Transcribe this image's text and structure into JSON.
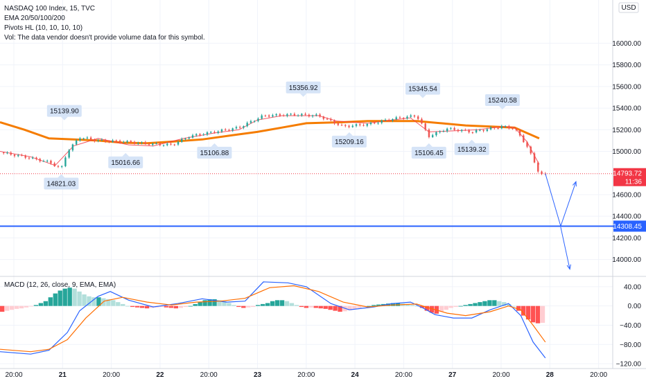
{
  "header": {
    "title": "NASDAQ 100 Index, 15, TVC",
    "ema": "EMA 20/50/100/200",
    "pivots": "Pivots HL (10, 10, 10, 10)",
    "vol": "Vol: The data vendor doesn't provide volume data for this symbol."
  },
  "currency": "USD",
  "macd_label": "MACD (12, 26, close, 9, EMA, EMA)",
  "colors": {
    "up": "#26a69a",
    "down": "#ef5350",
    "ema_orange": "#f57c00",
    "ema_red": "#f23645",
    "support": "#2962ff",
    "macd_line": "#2962ff",
    "signal_line": "#ff6d00",
    "label_bg": "#d6e4f7",
    "price_tag": "#f23645"
  },
  "chart_data": [
    {
      "type": "candlestick",
      "ylim": [
        13850,
        16400
      ],
      "y_ticks": [
        {
          "v": 16000,
          "label": "16000.00"
        },
        {
          "v": 15800,
          "label": "15800.00"
        },
        {
          "v": 15600,
          "label": "15600.00"
        },
        {
          "v": 15400,
          "label": "15400.00"
        },
        {
          "v": 15200,
          "label": "15200.00"
        },
        {
          "v": 15000,
          "label": "15000.00"
        },
        {
          "v": 14600,
          "label": "14600.00"
        },
        {
          "v": 14400,
          "label": "14400.00"
        },
        {
          "v": 14200,
          "label": "14200.00"
        },
        {
          "v": 14000,
          "label": "14000.00"
        }
      ],
      "x_ticks": [
        "20:00",
        "21",
        "20:00",
        "22",
        "20:00",
        "23",
        "20:00",
        "24",
        "20:00",
        "27",
        "20:00",
        "28",
        "20:00"
      ],
      "price_path": [
        [
          0,
          14990
        ],
        [
          0.04,
          14950
        ],
        [
          0.08,
          14900
        ],
        [
          0.1,
          14840
        ],
        [
          0.11,
          15000
        ],
        [
          0.13,
          15130
        ],
        [
          0.16,
          15100
        ],
        [
          0.2,
          15090
        ],
        [
          0.24,
          15070
        ],
        [
          0.28,
          15060
        ],
        [
          0.31,
          15140
        ],
        [
          0.35,
          15180
        ],
        [
          0.39,
          15220
        ],
        [
          0.43,
          15330
        ],
        [
          0.48,
          15340
        ],
        [
          0.52,
          15330
        ],
        [
          0.56,
          15230
        ],
        [
          0.6,
          15250
        ],
        [
          0.64,
          15300
        ],
        [
          0.68,
          15330
        ],
        [
          0.7,
          15140
        ],
        [
          0.73,
          15210
        ],
        [
          0.77,
          15180
        ],
        [
          0.82,
          15230
        ],
        [
          0.84,
          15210
        ],
        [
          0.86,
          15050
        ],
        [
          0.88,
          14800
        ],
        [
          0.89,
          14780
        ]
      ],
      "ema_fast": [
        [
          0,
          15000
        ],
        [
          0.05,
          14950
        ],
        [
          0.09,
          14870
        ],
        [
          0.12,
          15050
        ],
        [
          0.16,
          15120
        ],
        [
          0.21,
          15060
        ],
        [
          0.25,
          15050
        ],
        [
          0.3,
          15120
        ],
        [
          0.35,
          15170
        ],
        [
          0.39,
          15200
        ],
        [
          0.42,
          15290
        ],
        [
          0.46,
          15330
        ],
        [
          0.52,
          15330
        ],
        [
          0.55,
          15280
        ],
        [
          0.6,
          15260
        ],
        [
          0.64,
          15290
        ],
        [
          0.67,
          15310
        ],
        [
          0.7,
          15180
        ],
        [
          0.74,
          15190
        ],
        [
          0.78,
          15200
        ],
        [
          0.82,
          15230
        ],
        [
          0.84,
          15220
        ],
        [
          0.86,
          15090
        ],
        [
          0.88,
          14880
        ]
      ],
      "ema_slow": [
        [
          0,
          15270
        ],
        [
          0.04,
          15200
        ],
        [
          0.08,
          15120
        ],
        [
          0.12,
          15110
        ],
        [
          0.16,
          15100
        ],
        [
          0.2,
          15080
        ],
        [
          0.24,
          15075
        ],
        [
          0.28,
          15090
        ],
        [
          0.33,
          15110
        ],
        [
          0.38,
          15150
        ],
        [
          0.42,
          15180
        ],
        [
          0.46,
          15220
        ],
        [
          0.5,
          15260
        ],
        [
          0.56,
          15270
        ],
        [
          0.6,
          15280
        ],
        [
          0.64,
          15280
        ],
        [
          0.68,
          15280
        ],
        [
          0.72,
          15260
        ],
        [
          0.76,
          15240
        ],
        [
          0.8,
          15230
        ],
        [
          0.84,
          15220
        ],
        [
          0.88,
          15120
        ]
      ],
      "pivots": [
        {
          "x": 0.1,
          "price": 14821.03,
          "label": "14821.03",
          "pos": "below"
        },
        {
          "x": 0.105,
          "price": 15139.9,
          "label": "15139.90",
          "pos": "above"
        },
        {
          "x": 0.205,
          "price": 15016.66,
          "label": "15016.66",
          "pos": "below"
        },
        {
          "x": 0.35,
          "price": 15106.88,
          "label": "15106.88",
          "pos": "below"
        },
        {
          "x": 0.495,
          "price": 15356.92,
          "label": "15356.92",
          "pos": "above"
        },
        {
          "x": 0.57,
          "price": 15209.16,
          "label": "15209.16",
          "pos": "below"
        },
        {
          "x": 0.69,
          "price": 15345.54,
          "label": "15345.54",
          "pos": "above"
        },
        {
          "x": 0.7,
          "price": 15106.45,
          "label": "15106.45",
          "pos": "below"
        },
        {
          "x": 0.77,
          "price": 15139.32,
          "label": "15139.32",
          "pos": "below"
        },
        {
          "x": 0.82,
          "price": 15240.58,
          "label": "15240.58",
          "pos": "above"
        }
      ],
      "last_price": {
        "value": 14793.72,
        "label": "14793.72",
        "countdown": "11:36"
      },
      "support": {
        "value": 14308.45,
        "label": "14308.45"
      },
      "projection": [
        [
          0.89,
          14793.72
        ],
        [
          0.915,
          14308.45
        ],
        [
          0.94,
          14720
        ]
      ],
      "projection2": [
        [
          0.915,
          14300
        ],
        [
          0.93,
          13910
        ]
      ]
    },
    {
      "type": "macd",
      "ylim": [
        -130,
        60
      ],
      "y_ticks": [
        {
          "v": 40,
          "label": "40.00"
        },
        {
          "v": 0,
          "label": "0.00"
        },
        {
          "v": -40,
          "label": "−40.00"
        },
        {
          "v": -80,
          "label": "−80.00"
        },
        {
          "v": -120,
          "label": "−120.00"
        }
      ],
      "hist": [
        -12,
        -10,
        -8,
        -6,
        -5,
        -3,
        -1,
        2,
        6,
        10,
        18,
        26,
        32,
        36,
        38,
        36,
        30,
        24,
        20,
        18,
        18,
        16,
        14,
        12,
        8,
        4,
        0,
        -2,
        -3,
        -4,
        -5,
        -4,
        -3,
        -2,
        -3,
        -4,
        -5,
        -4,
        -2,
        0,
        4,
        8,
        12,
        14,
        14,
        12,
        10,
        6,
        2,
        -2,
        -4,
        -3,
        -2,
        2,
        4,
        6,
        10,
        12,
        12,
        10,
        6,
        2,
        -2,
        -4,
        -3,
        -4,
        -5,
        -6,
        -8,
        -10,
        -12,
        -11,
        -9,
        -6,
        -4,
        -2,
        0,
        2,
        3,
        4,
        5,
        6,
        6,
        5,
        4,
        2,
        0,
        -4,
        -10,
        -14,
        -16,
        -12,
        -8,
        -4,
        -2,
        0,
        2,
        4,
        6,
        8,
        10,
        12,
        12,
        10,
        8,
        4,
        0,
        -10,
        -20,
        -28,
        -34,
        -36,
        -35
      ],
      "macd_line": [
        [
          0,
          -95
        ],
        [
          0.05,
          -100
        ],
        [
          0.08,
          -92
        ],
        [
          0.11,
          -55
        ],
        [
          0.13,
          -10
        ],
        [
          0.16,
          20
        ],
        [
          0.18,
          30
        ],
        [
          0.21,
          12
        ],
        [
          0.25,
          -2
        ],
        [
          0.29,
          5
        ],
        [
          0.33,
          15
        ],
        [
          0.37,
          8
        ],
        [
          0.4,
          10
        ],
        [
          0.43,
          50
        ],
        [
          0.47,
          48
        ],
        [
          0.5,
          40
        ],
        [
          0.54,
          5
        ],
        [
          0.57,
          -8
        ],
        [
          0.61,
          -2
        ],
        [
          0.64,
          5
        ],
        [
          0.67,
          8
        ],
        [
          0.69,
          -4
        ],
        [
          0.71,
          -18
        ],
        [
          0.74,
          -25
        ],
        [
          0.77,
          -25
        ],
        [
          0.8,
          -8
        ],
        [
          0.83,
          5
        ],
        [
          0.85,
          -20
        ],
        [
          0.87,
          -75
        ],
        [
          0.89,
          -108
        ]
      ],
      "signal_line": [
        [
          0,
          -90
        ],
        [
          0.05,
          -95
        ],
        [
          0.08,
          -90
        ],
        [
          0.11,
          -70
        ],
        [
          0.14,
          -25
        ],
        [
          0.17,
          10
        ],
        [
          0.2,
          18
        ],
        [
          0.24,
          8
        ],
        [
          0.28,
          2
        ],
        [
          0.32,
          8
        ],
        [
          0.36,
          10
        ],
        [
          0.4,
          16
        ],
        [
          0.44,
          38
        ],
        [
          0.48,
          42
        ],
        [
          0.52,
          30
        ],
        [
          0.56,
          8
        ],
        [
          0.6,
          -2
        ],
        [
          0.64,
          2
        ],
        [
          0.68,
          4
        ],
        [
          0.7,
          -4
        ],
        [
          0.73,
          -15
        ],
        [
          0.76,
          -20
        ],
        [
          0.8,
          -12
        ],
        [
          0.83,
          0
        ],
        [
          0.85,
          -8
        ],
        [
          0.87,
          -40
        ],
        [
          0.89,
          -75
        ]
      ]
    }
  ]
}
